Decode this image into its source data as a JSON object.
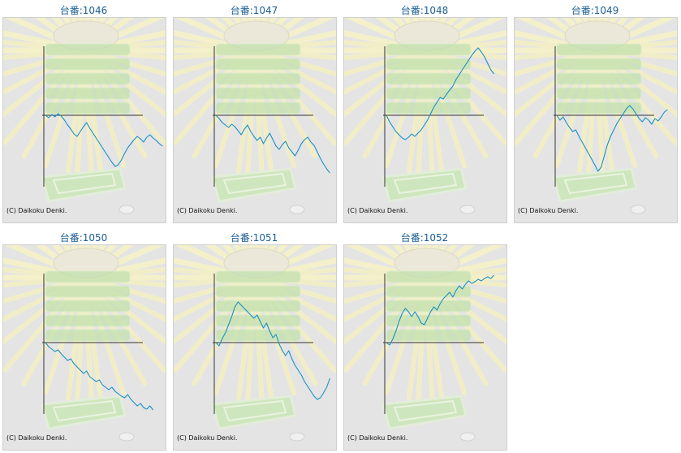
{
  "colors": {
    "line": "#1a8fc4",
    "title": "#1b5f93",
    "panel_bg": "#e4e4e4",
    "axis": "#333333",
    "background_art": "#c8e6b4"
  },
  "chart_data": [
    {
      "type": "line",
      "title": "台番:1046",
      "copyright": "(C) Daikoku Denki.",
      "y": [
        0,
        -3,
        1,
        -2,
        2,
        -1,
        -6,
        -12,
        -17,
        -23,
        -26,
        -20,
        -14,
        -9,
        -16,
        -22,
        -28,
        -34,
        -40,
        -46,
        -52,
        -58,
        -63,
        -61,
        -55,
        -47,
        -40,
        -35,
        -30,
        -26,
        -29,
        -33,
        -27,
        -24,
        -28,
        -31,
        -35,
        -38
      ]
    },
    {
      "type": "line",
      "title": "台番:1047",
      "copyright": "(C) Daikoku Denki.",
      "y": [
        0,
        -4,
        -9,
        -12,
        -15,
        -11,
        -14,
        -19,
        -24,
        -17,
        -12,
        -20,
        -26,
        -31,
        -27,
        -35,
        -28,
        -22,
        -30,
        -38,
        -42,
        -36,
        -32,
        -40,
        -45,
        -50,
        -43,
        -35,
        -30,
        -27,
        -33,
        -37,
        -45,
        -53,
        -60,
        -66,
        -71
      ]
    },
    {
      "type": "line",
      "title": "台番:1048",
      "copyright": "(C) Daikoku Denki.",
      "y": [
        0,
        -8,
        -14,
        -20,
        -24,
        -28,
        -30,
        -27,
        -23,
        -26,
        -22,
        -18,
        -12,
        -6,
        2,
        10,
        16,
        22,
        20,
        26,
        31,
        36,
        44,
        50,
        56,
        62,
        68,
        74,
        79,
        83,
        78,
        72,
        64,
        56,
        51
      ]
    },
    {
      "type": "line",
      "title": "台番:1049",
      "copyright": "(C) Daikoku Denki.",
      "y": [
        0,
        -6,
        -2,
        -9,
        -15,
        -20,
        -18,
        -26,
        -33,
        -40,
        -47,
        -54,
        -61,
        -69,
        -64,
        -50,
        -36,
        -26,
        -18,
        -10,
        -4,
        2,
        8,
        12,
        8,
        2,
        -4,
        -8,
        -3,
        -6,
        -11,
        -4,
        -7,
        -2,
        4,
        7
      ]
    },
    {
      "type": "line",
      "title": "台番:1050",
      "copyright": "(C) Daikoku Denki.",
      "y": [
        0,
        -5,
        -8,
        -11,
        -9,
        -14,
        -18,
        -22,
        -20,
        -26,
        -30,
        -34,
        -38,
        -35,
        -42,
        -45,
        -48,
        -46,
        -52,
        -55,
        -58,
        -55,
        -60,
        -63,
        -66,
        -68,
        -64,
        -70,
        -74,
        -78,
        -75,
        -80,
        -82,
        -78,
        -83
      ]
    },
    {
      "type": "line",
      "title": "台番:1051",
      "copyright": "(C) Daikoku Denki.",
      "y": [
        0,
        -4,
        5,
        12,
        22,
        32,
        44,
        50,
        46,
        42,
        38,
        34,
        30,
        34,
        26,
        18,
        24,
        14,
        6,
        10,
        -2,
        -10,
        -16,
        -10,
        -20,
        -28,
        -34,
        -40,
        -48,
        -54,
        -60,
        -66,
        -70,
        -68,
        -62,
        -55,
        -44
      ]
    },
    {
      "type": "line",
      "title": "台番:1052",
      "copyright": "(C) Daikoku Denki.",
      "y": [
        0,
        -3,
        4,
        14,
        26,
        36,
        42,
        38,
        32,
        38,
        32,
        24,
        22,
        30,
        38,
        44,
        40,
        48,
        54,
        58,
        62,
        56,
        64,
        70,
        66,
        72,
        76,
        73,
        75,
        78,
        76,
        79,
        81,
        79,
        83
      ]
    }
  ]
}
